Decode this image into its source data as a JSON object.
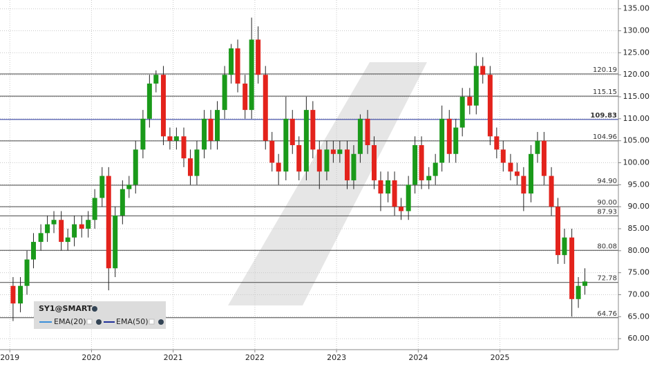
{
  "chart_data": {
    "type": "candlestick",
    "symbol": "SY1@SMART",
    "indicators": [
      "EMA(20)",
      "EMA(50)"
    ],
    "up_color": "#1a9a1a",
    "down_color": "#e3231c",
    "xlim": [
      2018.88,
      2026.45
    ],
    "xticks": [
      2019,
      2020,
      2021,
      2022,
      2023,
      2024,
      2025
    ],
    "ylim": [
      57.5,
      137
    ],
    "yticks": [
      {
        "value": 60,
        "label": "60.00"
      },
      {
        "value": 65,
        "label": "65.00"
      },
      {
        "value": 70,
        "label": "70.00"
      },
      {
        "value": 75,
        "label": "75.00"
      },
      {
        "value": 80,
        "label": "80.00"
      },
      {
        "value": 85,
        "label": "85.00"
      },
      {
        "value": 90,
        "label": "90.00"
      },
      {
        "value": 95,
        "label": "95.00"
      },
      {
        "value": 100,
        "label": "100.00"
      },
      {
        "value": 105,
        "label": "105.00"
      },
      {
        "value": 110,
        "label": "110.00"
      },
      {
        "value": 115,
        "label": "115.00"
      },
      {
        "value": 120,
        "label": "120.00"
      },
      {
        "value": 125,
        "label": "125.00"
      },
      {
        "value": 130,
        "label": "130.00"
      },
      {
        "value": 135,
        "label": "135.00"
      }
    ],
    "levels": [
      120.19,
      115.15,
      109.83,
      104.96,
      {
        "value": 94.9,
        "label": "94.90"
      },
      {
        "value": 90,
        "label": "90.00"
      },
      87.93,
      80.08,
      72.78,
      64.76
    ],
    "highlight_level": 109.83,
    "highlight_color": "#1f2f9a",
    "x": [
      2019.04,
      2019.13,
      2019.21,
      2019.29,
      2019.38,
      2019.46,
      2019.54,
      2019.63,
      2019.71,
      2019.79,
      2019.88,
      2019.96,
      2020.04,
      2020.13,
      2020.21,
      2020.29,
      2020.38,
      2020.46,
      2020.54,
      2020.63,
      2020.71,
      2020.79,
      2020.88,
      2020.96,
      2021.04,
      2021.13,
      2021.21,
      2021.29,
      2021.38,
      2021.46,
      2021.54,
      2021.63,
      2021.71,
      2021.79,
      2021.88,
      2021.96,
      2022.04,
      2022.13,
      2022.21,
      2022.29,
      2022.38,
      2022.46,
      2022.54,
      2022.63,
      2022.71,
      2022.79,
      2022.88,
      2022.96,
      2023.04,
      2023.13,
      2023.21,
      2023.29,
      2023.38,
      2023.46,
      2023.54,
      2023.63,
      2023.71,
      2023.79,
      2023.88,
      2023.96,
      2024.04,
      2024.13,
      2024.21,
      2024.29,
      2024.38,
      2024.46,
      2024.54,
      2024.63,
      2024.71,
      2024.79,
      2024.88,
      2024.96,
      2025.04,
      2025.13,
      2025.21,
      2025.29,
      2025.38,
      2025.46,
      2025.54,
      2025.63,
      2025.71,
      2025.79,
      2025.88,
      2025.96,
      2026.04
    ],
    "open": [
      72,
      68,
      72,
      78,
      82,
      84,
      86,
      87,
      82,
      83,
      86,
      85,
      87,
      92,
      97,
      76,
      88,
      94,
      95,
      103,
      110,
      118,
      120,
      106,
      105,
      106,
      101,
      97,
      103,
      110,
      105,
      112,
      120,
      126,
      118,
      112,
      128,
      120,
      105,
      100,
      98,
      110,
      104,
      98,
      112,
      103,
      98,
      103,
      102,
      103,
      96,
      102,
      110,
      104,
      96,
      93,
      96,
      90,
      89,
      95,
      104,
      96,
      97,
      100,
      110,
      102,
      108,
      115,
      113,
      122,
      120,
      106,
      103,
      100,
      98,
      97,
      93,
      102,
      105,
      97,
      90,
      79,
      83,
      69,
      72
    ],
    "high": [
      74,
      74,
      80,
      84,
      86,
      88,
      89,
      89,
      85,
      88,
      88,
      89,
      94,
      99,
      99,
      90,
      96,
      97,
      105,
      112,
      120,
      121,
      122,
      108,
      108,
      108,
      103,
      105,
      112,
      112,
      114,
      122,
      127,
      128,
      120,
      133,
      131,
      122,
      107,
      102,
      115,
      112,
      106,
      115,
      114,
      105,
      105,
      105,
      105,
      105,
      104,
      111,
      112,
      106,
      98,
      98,
      98,
      92,
      97,
      106,
      106,
      99,
      102,
      113,
      112,
      110,
      117,
      117,
      125,
      124,
      122,
      108,
      105,
      102,
      100,
      99,
      104,
      107,
      107,
      99,
      92,
      85,
      85,
      74,
      76
    ],
    "low": [
      64,
      66,
      70,
      76,
      80,
      82,
      84,
      80,
      80,
      81,
      83,
      83,
      85,
      90,
      71,
      74,
      86,
      92,
      93,
      101,
      108,
      116,
      104,
      103,
      103,
      99,
      95,
      95,
      101,
      103,
      103,
      110,
      118,
      116,
      110,
      110,
      118,
      103,
      98,
      95,
      96,
      102,
      96,
      96,
      101,
      94,
      96,
      100,
      100,
      94,
      94,
      100,
      102,
      94,
      89,
      91,
      88,
      87,
      87,
      93,
      94,
      94,
      95,
      98,
      100,
      100,
      106,
      111,
      111,
      118,
      104,
      101,
      98,
      96,
      95,
      89,
      91,
      100,
      95,
      88,
      77,
      77,
      65,
      67,
      70
    ],
    "close": [
      68,
      72,
      78,
      82,
      84,
      86,
      87,
      82,
      83,
      86,
      85,
      87,
      92,
      97,
      76,
      88,
      94,
      95,
      103,
      110,
      118,
      120,
      106,
      105,
      106,
      101,
      97,
      103,
      110,
      105,
      112,
      120,
      126,
      118,
      112,
      128,
      120,
      105,
      100,
      98,
      110,
      104,
      98,
      112,
      103,
      98,
      103,
      102,
      103,
      96,
      102,
      110,
      104,
      96,
      93,
      96,
      90,
      89,
      95,
      104,
      96,
      97,
      100,
      110,
      102,
      108,
      115,
      113,
      122,
      120,
      106,
      103,
      100,
      98,
      97,
      93,
      102,
      105,
      97,
      90,
      79,
      83,
      69,
      72,
      73
    ]
  }
}
